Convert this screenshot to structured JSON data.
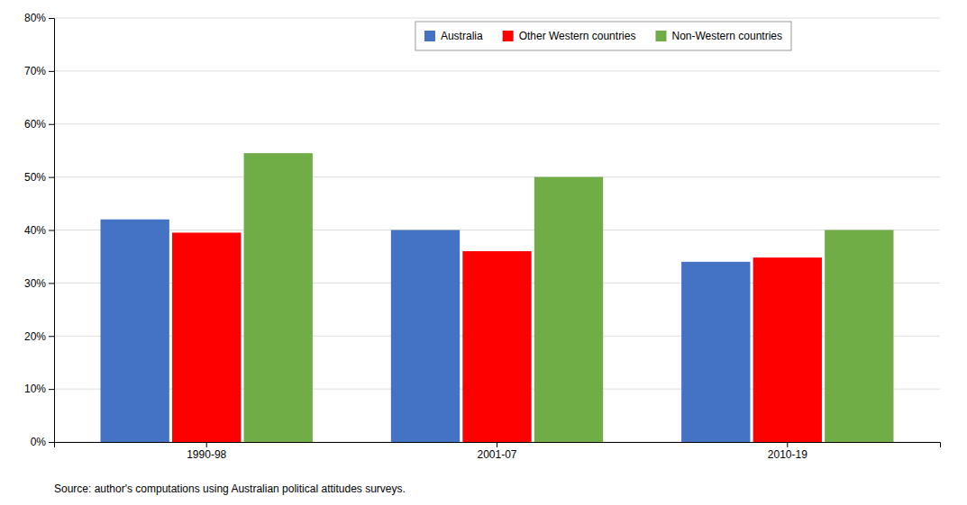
{
  "chart_data": {
    "type": "bar",
    "categories": [
      "1990-98",
      "2001-07",
      "2010-19"
    ],
    "series": [
      {
        "name": "Australia",
        "color": "#4472C4",
        "values": [
          0.42,
          0.4,
          0.34
        ]
      },
      {
        "name": "Other Western countries",
        "color": "#FF0000",
        "values": [
          0.395,
          0.36,
          0.348
        ]
      },
      {
        "name": "Non-Western countries",
        "color": "#70AD47",
        "values": [
          0.545,
          0.5,
          0.4
        ]
      }
    ],
    "ylim": [
      0,
      0.8
    ],
    "yticks": [
      {
        "value": 0.0,
        "label": "0%"
      },
      {
        "value": 0.1,
        "label": "10%"
      },
      {
        "value": 0.2,
        "label": "20%"
      },
      {
        "value": 0.3,
        "label": "30%"
      },
      {
        "value": 0.4,
        "label": "40%"
      },
      {
        "value": 0.5,
        "label": "50%"
      },
      {
        "value": 0.6,
        "label": "60%"
      },
      {
        "value": 0.7,
        "label": "70%"
      },
      {
        "value": 0.8,
        "label": "80%"
      }
    ],
    "grid": true,
    "legend": "top",
    "annotations": [
      "Source: author's computations using Australian political attitudes surveys."
    ]
  }
}
